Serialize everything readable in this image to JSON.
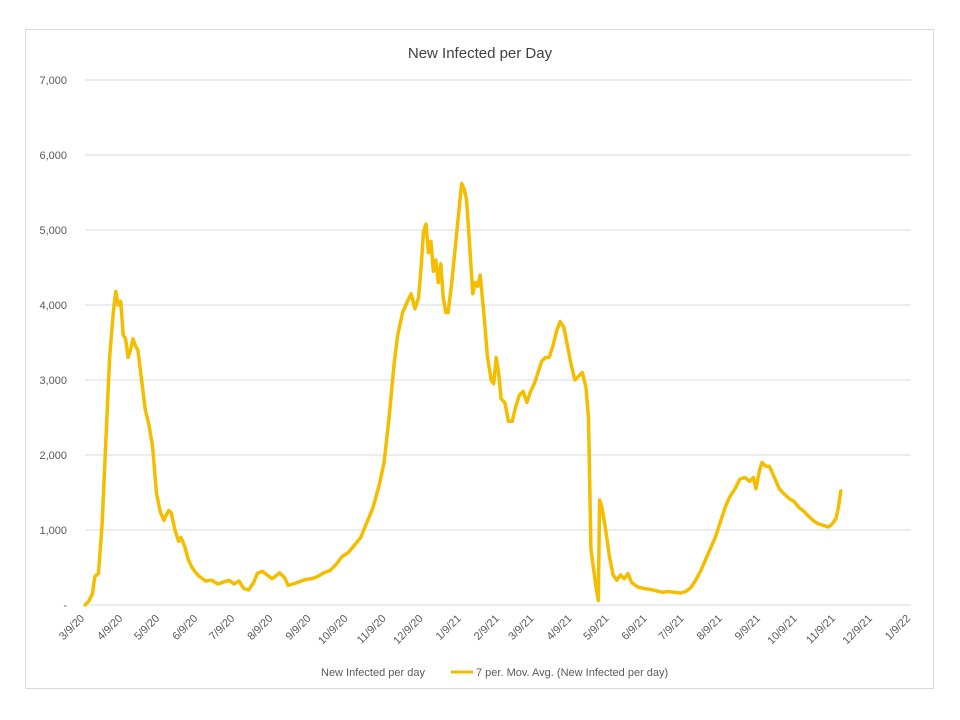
{
  "chart_data": {
    "type": "line",
    "title": "New Infected per Day",
    "xlabel": "",
    "ylabel": "",
    "ylim": [
      0,
      7000
    ],
    "y_ticks": [
      "-",
      "1,000",
      "2,000",
      "3,000",
      "4,000",
      "5,000",
      "6,000",
      "7,000"
    ],
    "y_tick_values": [
      0,
      1000,
      2000,
      3000,
      4000,
      5000,
      6000,
      7000
    ],
    "x_ticks": [
      "3/9/20",
      "4/9/20",
      "5/9/20",
      "6/9/20",
      "7/9/20",
      "8/9/20",
      "9/9/20",
      "10/9/20",
      "11/9/20",
      "12/9/20",
      "1/9/21",
      "2/9/21",
      "3/9/21",
      "4/9/21",
      "5/9/21",
      "6/9/21",
      "7/9/21",
      "8/9/21",
      "9/9/21",
      "10/9/21",
      "11/9/21",
      "12/9/21",
      "1/9/22"
    ],
    "xlim": [
      "2020-03-09",
      "2022-01-09"
    ],
    "grid": true,
    "legend_position": "bottom",
    "legend": [
      "New Infected per day",
      "7 per. Mov. Avg. (New Infected per day)"
    ],
    "series": [
      {
        "name": "7 per. Mov. Avg. (New Infected per day)",
        "color": "#f5bd00",
        "points": [
          [
            "2020-03-09",
            0
          ],
          [
            "2020-03-12",
            50
          ],
          [
            "2020-03-15",
            150
          ],
          [
            "2020-03-17",
            380
          ],
          [
            "2020-03-20",
            420
          ],
          [
            "2020-03-23",
            1100
          ],
          [
            "2020-03-26",
            2200
          ],
          [
            "2020-03-29",
            3300
          ],
          [
            "2020-04-01",
            3900
          ],
          [
            "2020-04-03",
            4180
          ],
          [
            "2020-04-05",
            4000
          ],
          [
            "2020-04-07",
            4050
          ],
          [
            "2020-04-09",
            3600
          ],
          [
            "2020-04-11",
            3550
          ],
          [
            "2020-04-13",
            3300
          ],
          [
            "2020-04-15",
            3400
          ],
          [
            "2020-04-17",
            3550
          ],
          [
            "2020-04-19",
            3450
          ],
          [
            "2020-04-21",
            3400
          ],
          [
            "2020-04-24",
            3000
          ],
          [
            "2020-04-27",
            2600
          ],
          [
            "2020-04-30",
            2400
          ],
          [
            "2020-05-03",
            2100
          ],
          [
            "2020-05-06",
            1500
          ],
          [
            "2020-05-09",
            1250
          ],
          [
            "2020-05-12",
            1130
          ],
          [
            "2020-05-14",
            1200
          ],
          [
            "2020-05-16",
            1260
          ],
          [
            "2020-05-18",
            1230
          ],
          [
            "2020-05-21",
            1000
          ],
          [
            "2020-05-24",
            850
          ],
          [
            "2020-05-26",
            900
          ],
          [
            "2020-05-29",
            780
          ],
          [
            "2020-06-01",
            600
          ],
          [
            "2020-06-04",
            500
          ],
          [
            "2020-06-07",
            430
          ],
          [
            "2020-06-10",
            380
          ],
          [
            "2020-06-15",
            320
          ],
          [
            "2020-06-20",
            330
          ],
          [
            "2020-06-25",
            280
          ],
          [
            "2020-06-30",
            310
          ],
          [
            "2020-07-04",
            330
          ],
          [
            "2020-07-08",
            280
          ],
          [
            "2020-07-12",
            320
          ],
          [
            "2020-07-16",
            220
          ],
          [
            "2020-07-20",
            200
          ],
          [
            "2020-07-24",
            300
          ],
          [
            "2020-07-27",
            420
          ],
          [
            "2020-07-31",
            450
          ],
          [
            "2020-08-04",
            400
          ],
          [
            "2020-08-08",
            350
          ],
          [
            "2020-08-12",
            400
          ],
          [
            "2020-08-14",
            430
          ],
          [
            "2020-08-18",
            370
          ],
          [
            "2020-08-21",
            260
          ],
          [
            "2020-08-25",
            280
          ],
          [
            "2020-08-30",
            310
          ],
          [
            "2020-09-04",
            340
          ],
          [
            "2020-09-09",
            350
          ],
          [
            "2020-09-14",
            380
          ],
          [
            "2020-09-19",
            430
          ],
          [
            "2020-09-24",
            460
          ],
          [
            "2020-09-29",
            540
          ],
          [
            "2020-10-04",
            650
          ],
          [
            "2020-10-09",
            700
          ],
          [
            "2020-10-14",
            800
          ],
          [
            "2020-10-19",
            900
          ],
          [
            "2020-10-24",
            1100
          ],
          [
            "2020-10-29",
            1300
          ],
          [
            "2020-11-03",
            1600
          ],
          [
            "2020-11-07",
            1900
          ],
          [
            "2020-11-11",
            2500
          ],
          [
            "2020-11-15",
            3200
          ],
          [
            "2020-11-18",
            3600
          ],
          [
            "2020-11-22",
            3900
          ],
          [
            "2020-11-26",
            4050
          ],
          [
            "2020-11-29",
            4150
          ],
          [
            "2020-12-02",
            3950
          ],
          [
            "2020-12-05",
            4100
          ],
          [
            "2020-12-07",
            4500
          ],
          [
            "2020-12-09",
            4980
          ],
          [
            "2020-12-11",
            5080
          ],
          [
            "2020-12-13",
            4700
          ],
          [
            "2020-12-15",
            4850
          ],
          [
            "2020-12-17",
            4450
          ],
          [
            "2020-12-19",
            4600
          ],
          [
            "2020-12-21",
            4300
          ],
          [
            "2020-12-23",
            4550
          ],
          [
            "2020-12-25",
            4100
          ],
          [
            "2020-12-27",
            3900
          ],
          [
            "2020-12-29",
            3900
          ],
          [
            "2021-01-01",
            4300
          ],
          [
            "2021-01-04",
            4800
          ],
          [
            "2021-01-07",
            5300
          ],
          [
            "2021-01-09",
            5620
          ],
          [
            "2021-01-11",
            5550
          ],
          [
            "2021-01-13",
            5400
          ],
          [
            "2021-01-15",
            4900
          ],
          [
            "2021-01-18",
            4150
          ],
          [
            "2021-01-20",
            4300
          ],
          [
            "2021-01-22",
            4250
          ],
          [
            "2021-01-24",
            4400
          ],
          [
            "2021-01-27",
            3900
          ],
          [
            "2021-01-30",
            3300
          ],
          [
            "2021-02-02",
            3000
          ],
          [
            "2021-02-04",
            2950
          ],
          [
            "2021-02-06",
            3300
          ],
          [
            "2021-02-08",
            3100
          ],
          [
            "2021-02-10",
            2750
          ],
          [
            "2021-02-13",
            2700
          ],
          [
            "2021-02-16",
            2450
          ],
          [
            "2021-02-19",
            2450
          ],
          [
            "2021-02-22",
            2650
          ],
          [
            "2021-02-25",
            2800
          ],
          [
            "2021-02-28",
            2850
          ],
          [
            "2021-03-03",
            2700
          ],
          [
            "2021-03-06",
            2850
          ],
          [
            "2021-03-09",
            2950
          ],
          [
            "2021-03-12",
            3100
          ],
          [
            "2021-03-15",
            3250
          ],
          [
            "2021-03-18",
            3300
          ],
          [
            "2021-03-21",
            3300
          ],
          [
            "2021-03-24",
            3450
          ],
          [
            "2021-03-27",
            3650
          ],
          [
            "2021-03-30",
            3780
          ],
          [
            "2021-04-02",
            3700
          ],
          [
            "2021-04-05",
            3450
          ],
          [
            "2021-04-08",
            3200
          ],
          [
            "2021-04-11",
            3000
          ],
          [
            "2021-04-14",
            3050
          ],
          [
            "2021-04-17",
            3100
          ],
          [
            "2021-04-20",
            2900
          ],
          [
            "2021-04-22",
            2500
          ],
          [
            "2021-04-24",
            750
          ],
          [
            "2021-04-26",
            500
          ],
          [
            "2021-04-28",
            250
          ],
          [
            "2021-04-30",
            60
          ],
          [
            "2021-05-01",
            1400
          ],
          [
            "2021-05-03",
            1300
          ],
          [
            "2021-05-06",
            1000
          ],
          [
            "2021-05-09",
            650
          ],
          [
            "2021-05-12",
            400
          ],
          [
            "2021-05-15",
            330
          ],
          [
            "2021-05-18",
            400
          ],
          [
            "2021-05-21",
            350
          ],
          [
            "2021-05-24",
            420
          ],
          [
            "2021-05-27",
            300
          ],
          [
            "2021-06-01",
            240
          ],
          [
            "2021-06-06",
            220
          ],
          [
            "2021-06-11",
            210
          ],
          [
            "2021-06-16",
            190
          ],
          [
            "2021-06-21",
            170
          ],
          [
            "2021-06-26",
            180
          ],
          [
            "2021-07-01",
            170
          ],
          [
            "2021-07-06",
            160
          ],
          [
            "2021-07-10",
            180
          ],
          [
            "2021-07-14",
            230
          ],
          [
            "2021-07-18",
            330
          ],
          [
            "2021-07-22",
            450
          ],
          [
            "2021-07-26",
            600
          ],
          [
            "2021-07-30",
            750
          ],
          [
            "2021-08-03",
            900
          ],
          [
            "2021-08-07",
            1100
          ],
          [
            "2021-08-11",
            1300
          ],
          [
            "2021-08-15",
            1450
          ],
          [
            "2021-08-19",
            1550
          ],
          [
            "2021-08-23",
            1680
          ],
          [
            "2021-08-27",
            1700
          ],
          [
            "2021-08-31",
            1650
          ],
          [
            "2021-09-03",
            1700
          ],
          [
            "2021-09-05",
            1550
          ],
          [
            "2021-09-08",
            1800
          ],
          [
            "2021-09-10",
            1900
          ],
          [
            "2021-09-13",
            1850
          ],
          [
            "2021-09-16",
            1850
          ],
          [
            "2021-09-20",
            1700
          ],
          [
            "2021-09-24",
            1550
          ],
          [
            "2021-09-28",
            1480
          ],
          [
            "2021-10-02",
            1420
          ],
          [
            "2021-10-06",
            1380
          ],
          [
            "2021-10-10",
            1300
          ],
          [
            "2021-10-14",
            1250
          ],
          [
            "2021-10-18",
            1180
          ],
          [
            "2021-10-22",
            1120
          ],
          [
            "2021-10-26",
            1080
          ],
          [
            "2021-10-30",
            1060
          ],
          [
            "2021-11-03",
            1040
          ],
          [
            "2021-11-06",
            1080
          ],
          [
            "2021-11-09",
            1150
          ],
          [
            "2021-11-11",
            1300
          ],
          [
            "2021-11-13",
            1520
          ]
        ]
      }
    ]
  }
}
